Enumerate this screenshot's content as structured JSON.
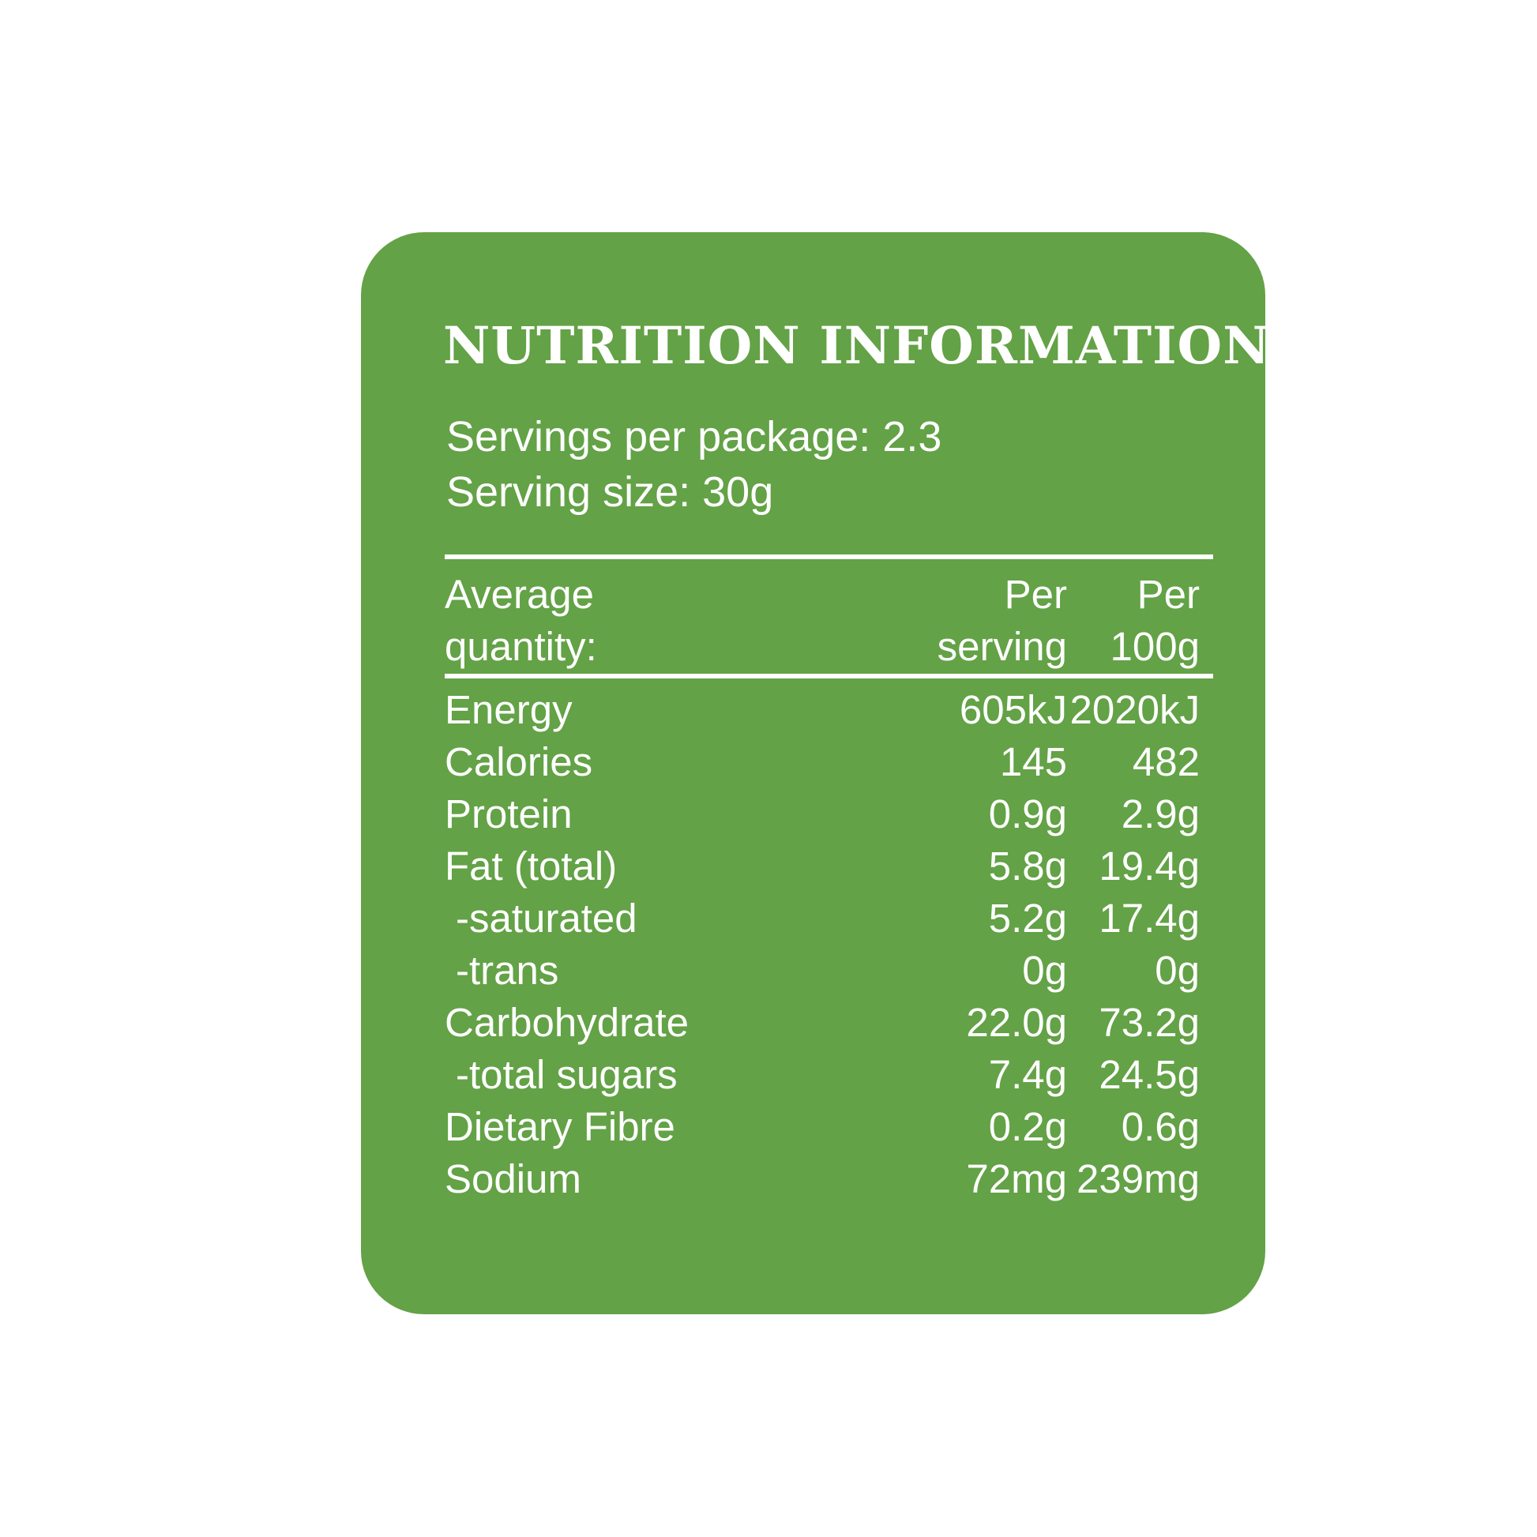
{
  "panel": {
    "background_color": "#63a246",
    "text_color": "#ffffff",
    "title": "NUTRITION INFORMATION",
    "servings_per_package": "Servings per package: 2.3",
    "serving_size": "Serving size: 30g"
  },
  "table": {
    "headers": [
      [
        "Average",
        "quantity:"
      ],
      [
        "Per",
        "serving"
      ],
      [
        "Per",
        "100g"
      ]
    ],
    "rows": [
      {
        "label": "Energy",
        "indent": false,
        "per_serving": "605kJ",
        "per_100g": "2020kJ"
      },
      {
        "label": "Calories",
        "indent": false,
        "per_serving": "145",
        "per_100g": "482"
      },
      {
        "label": "Protein",
        "indent": false,
        "per_serving": "0.9g",
        "per_100g": "2.9g"
      },
      {
        "label": "Fat (total)",
        "indent": false,
        "per_serving": "5.8g",
        "per_100g": "19.4g"
      },
      {
        "label": "-saturated",
        "indent": true,
        "per_serving": "5.2g",
        "per_100g": "17.4g"
      },
      {
        "label": "-trans",
        "indent": true,
        "per_serving": "0g",
        "per_100g": "0g"
      },
      {
        "label": "Carbohydrate",
        "indent": false,
        "per_serving": "22.0g",
        "per_100g": "73.2g"
      },
      {
        "label": "-total sugars",
        "indent": true,
        "per_serving": "7.4g",
        "per_100g": "24.5g"
      },
      {
        "label": "Dietary Fibre",
        "indent": false,
        "per_serving": "0.2g",
        "per_100g": "0.6g"
      },
      {
        "label": "Sodium",
        "indent": false,
        "per_serving": "72mg",
        "per_100g": "239mg"
      }
    ]
  }
}
